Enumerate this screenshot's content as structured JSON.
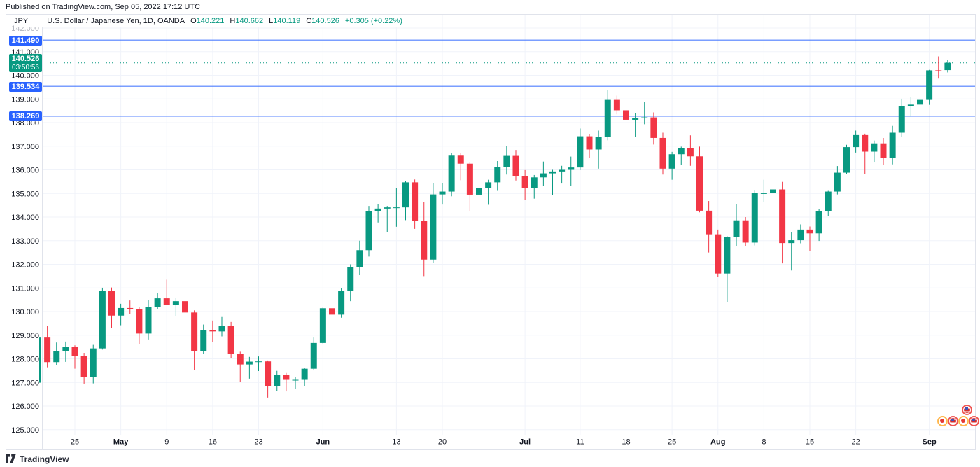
{
  "published_bar": {
    "text": "Published on TradingView.com, Sep 05, 2022 17:12 UTC"
  },
  "legend": {
    "currency": "JPY",
    "title": "U.S. Dollar / Japanese Yen, 1D, OANDA",
    "ohlc": {
      "o_label": "O",
      "o": "140.221",
      "h_label": "H",
      "h": "140.662",
      "l_label": "L",
      "l": "140.119",
      "c_label": "C",
      "c": "140.526",
      "change": "+0.305 (+0.22%)"
    }
  },
  "price_scale": {
    "alerts": [
      "141.490",
      "139.534",
      "138.269"
    ],
    "current": {
      "price": "140.526",
      "countdown": "03:50:56"
    }
  },
  "footer": {
    "brand": "TradingView"
  },
  "colors": {
    "up": "#089981",
    "down": "#F23645",
    "alert_line": "#2962FF",
    "grid": "#F0F3FA",
    "border": "#E0E3EB",
    "text": "#131722"
  },
  "chart_data": {
    "type": "candlestick",
    "title": "U.S. Dollar / Japanese Yen",
    "timeframe": "1D",
    "exchange": "OANDA",
    "ylim": [
      124.8,
      142.6
    ],
    "grid": true,
    "y_axis_labels": [
      "142.000",
      "141.000",
      "140.000",
      "139.000",
      "138.000",
      "137.000",
      "136.000",
      "135.000",
      "134.000",
      "133.000",
      "132.000",
      "131.000",
      "130.000",
      "129.000",
      "128.000",
      "127.000",
      "126.000",
      "125.000"
    ],
    "x_ticks": [
      [
        4,
        "25",
        0
      ],
      [
        9,
        "May",
        1
      ],
      [
        14,
        "9",
        0
      ],
      [
        19,
        "16",
        0
      ],
      [
        24,
        "23",
        0
      ],
      [
        31,
        "Jun",
        1
      ],
      [
        39,
        "13",
        0
      ],
      [
        44,
        "20",
        0
      ],
      [
        53,
        "Jul",
        1
      ],
      [
        59,
        "11",
        0
      ],
      [
        64,
        "18",
        0
      ],
      [
        69,
        "25",
        0
      ],
      [
        74,
        "Aug",
        1
      ],
      [
        79,
        "8",
        0
      ],
      [
        84,
        "15",
        0
      ],
      [
        89,
        "22",
        0
      ],
      [
        97,
        "Sep",
        1
      ]
    ],
    "price_lines": {
      "alerts": [
        141.49,
        139.534,
        138.269
      ],
      "current": 140.526
    },
    "events_top": [
      "us"
    ],
    "events_bottom": [
      "jp",
      "us",
      "jp",
      "us"
    ],
    "candles": [
      [
        "Apr 19",
        126.99,
        128.97,
        126.93,
        128.9
      ],
      [
        "Apr 20",
        128.9,
        129.4,
        127.64,
        127.86
      ],
      [
        "Apr 21",
        127.86,
        128.69,
        127.74,
        128.33
      ],
      [
        "Apr 22",
        128.33,
        128.73,
        127.87,
        128.5
      ],
      [
        "Apr 25",
        128.5,
        128.57,
        127.58,
        128.11
      ],
      [
        "Apr 26",
        128.11,
        128.25,
        126.95,
        127.24
      ],
      [
        "Apr 27",
        127.24,
        128.59,
        126.96,
        128.44
      ],
      [
        "Apr 28",
        128.44,
        131.01,
        128.39,
        130.86
      ],
      [
        "Apr 29",
        130.86,
        131.02,
        129.31,
        129.83
      ],
      [
        "May 2",
        129.83,
        130.33,
        129.42,
        130.15
      ],
      [
        "May 3",
        130.15,
        130.47,
        129.9,
        130.11
      ],
      [
        "May 4",
        130.11,
        130.19,
        128.63,
        129.07
      ],
      [
        "May 5",
        129.07,
        130.5,
        128.82,
        130.19
      ],
      [
        "May 6",
        130.19,
        130.77,
        130.11,
        130.56
      ],
      [
        "May 9",
        130.56,
        131.35,
        130.27,
        130.29
      ],
      [
        "May 10",
        130.29,
        130.58,
        129.81,
        130.44
      ],
      [
        "May 11",
        130.44,
        130.6,
        129.45,
        129.96
      ],
      [
        "May 12",
        129.96,
        130.05,
        127.52,
        128.34
      ],
      [
        "May 13",
        128.34,
        129.45,
        128.22,
        129.21
      ],
      [
        "May 16",
        129.21,
        129.62,
        128.71,
        129.16
      ],
      [
        "May 17",
        129.16,
        129.77,
        128.95,
        129.38
      ],
      [
        "May 18",
        129.38,
        129.56,
        128.04,
        128.22
      ],
      [
        "May 19",
        128.22,
        128.3,
        127.03,
        127.76
      ],
      [
        "May 20",
        127.76,
        128.08,
        127.16,
        127.88
      ],
      [
        "May 23",
        127.88,
        128.1,
        127.48,
        127.89
      ],
      [
        "May 24",
        127.89,
        127.93,
        126.36,
        126.83
      ],
      [
        "May 25",
        126.83,
        127.49,
        126.63,
        127.31
      ],
      [
        "May 26",
        127.31,
        127.4,
        126.62,
        127.11
      ],
      [
        "May 27",
        127.11,
        127.23,
        126.73,
        127.11
      ],
      [
        "May 30",
        127.11,
        127.6,
        126.84,
        127.58
      ],
      [
        "May 31",
        127.58,
        128.9,
        127.51,
        128.67
      ],
      [
        "Jun 1",
        128.67,
        130.2,
        128.64,
        130.14
      ],
      [
        "Jun 2",
        130.14,
        130.23,
        129.45,
        129.87
      ],
      [
        "Jun 3",
        129.87,
        130.98,
        129.74,
        130.86
      ],
      [
        "Jun 6",
        130.86,
        132.0,
        130.44,
        131.88
      ],
      [
        "Jun 7",
        131.88,
        133.0,
        131.54,
        132.6
      ],
      [
        "Jun 8",
        132.6,
        134.47,
        132.33,
        134.25
      ],
      [
        "Jun 9",
        134.25,
        134.56,
        133.77,
        134.36
      ],
      [
        "Jun 10",
        134.36,
        134.47,
        133.37,
        134.41
      ],
      [
        "Jun 13",
        134.41,
        135.22,
        133.59,
        134.41
      ],
      [
        "Jun 14",
        134.41,
        135.53,
        133.87,
        135.47
      ],
      [
        "Jun 15",
        135.47,
        135.59,
        133.5,
        133.85
      ],
      [
        "Jun 16",
        133.85,
        134.63,
        131.5,
        132.2
      ],
      [
        "Jun 17",
        132.2,
        135.43,
        132.05,
        134.96
      ],
      [
        "Jun 20",
        134.96,
        135.44,
        134.53,
        135.08
      ],
      [
        "Jun 21",
        135.08,
        136.71,
        134.88,
        136.6
      ],
      [
        "Jun 22",
        136.6,
        136.71,
        135.56,
        136.26
      ],
      [
        "Jun 23",
        136.26,
        136.32,
        134.26,
        134.95
      ],
      [
        "Jun 24",
        134.95,
        135.41,
        134.31,
        135.23
      ],
      [
        "Jun 27",
        135.23,
        135.58,
        134.52,
        135.47
      ],
      [
        "Jun 28",
        135.47,
        136.37,
        135.11,
        136.11
      ],
      [
        "Jun 29",
        136.11,
        137.0,
        135.8,
        136.59
      ],
      [
        "Jun 30",
        136.59,
        136.84,
        135.55,
        135.72
      ],
      [
        "Jul 1",
        135.72,
        135.99,
        134.74,
        135.22
      ],
      [
        "Jul 4",
        135.22,
        135.78,
        134.78,
        135.68
      ],
      [
        "Jul 5",
        135.68,
        136.35,
        135.33,
        135.85
      ],
      [
        "Jul 6",
        135.85,
        136.0,
        134.95,
        135.93
      ],
      [
        "Jul 7",
        135.93,
        136.17,
        135.42,
        136.0
      ],
      [
        "Jul 8",
        136.0,
        136.56,
        135.32,
        136.1
      ],
      [
        "Jul 11",
        136.1,
        137.75,
        135.99,
        137.42
      ],
      [
        "Jul 12",
        137.42,
        137.51,
        136.52,
        136.86
      ],
      [
        "Jul 13",
        136.86,
        137.66,
        136.05,
        137.38
      ],
      [
        "Jul 14",
        137.38,
        139.39,
        137.25,
        138.96
      ],
      [
        "Jul 15",
        138.96,
        139.14,
        138.35,
        138.52
      ],
      [
        "Jul 18",
        138.52,
        138.58,
        137.89,
        138.12
      ],
      [
        "Jul 19",
        138.12,
        138.4,
        137.38,
        138.2
      ],
      [
        "Jul 20",
        138.2,
        138.87,
        137.93,
        138.22
      ],
      [
        "Jul 21",
        138.22,
        138.43,
        137.07,
        137.35
      ],
      [
        "Jul 22",
        137.35,
        137.57,
        135.8,
        136.05
      ],
      [
        "Jul 25",
        136.05,
        136.76,
        135.58,
        136.66
      ],
      [
        "Jul 26",
        136.66,
        136.98,
        136.2,
        136.91
      ],
      [
        "Jul 27",
        136.91,
        137.46,
        136.17,
        136.57
      ],
      [
        "Jul 28",
        136.57,
        136.98,
        134.2,
        134.27
      ],
      [
        "Jul 29",
        134.27,
        134.68,
        132.5,
        133.27
      ],
      [
        "Aug 1",
        133.27,
        133.47,
        131.47,
        131.61
      ],
      [
        "Aug 2",
        131.61,
        133.19,
        130.41,
        133.17
      ],
      [
        "Aug 3",
        133.17,
        134.55,
        132.77,
        133.86
      ],
      [
        "Aug 4",
        133.86,
        134.0,
        132.76,
        132.92
      ],
      [
        "Aug 5",
        132.92,
        135.12,
        132.8,
        135.01
      ],
      [
        "Aug 8",
        135.01,
        135.58,
        134.64,
        135.01
      ],
      [
        "Aug 9",
        135.01,
        135.29,
        134.54,
        135.17
      ],
      [
        "Aug 10",
        135.17,
        135.49,
        132.04,
        132.9
      ],
      [
        "Aug 11",
        132.9,
        133.37,
        131.74,
        133.02
      ],
      [
        "Aug 12",
        133.02,
        133.69,
        132.89,
        133.47
      ],
      [
        "Aug 15",
        133.47,
        133.6,
        132.56,
        133.31
      ],
      [
        "Aug 16",
        133.31,
        134.33,
        132.99,
        134.25
      ],
      [
        "Aug 17",
        134.25,
        135.11,
        134.04,
        135.08
      ],
      [
        "Aug 18",
        135.08,
        136.16,
        134.96,
        135.88
      ],
      [
        "Aug 19",
        135.88,
        137.06,
        135.82,
        136.96
      ],
      [
        "Aug 22",
        136.96,
        137.66,
        136.73,
        137.47
      ],
      [
        "Aug 23",
        137.47,
        137.53,
        135.82,
        136.77
      ],
      [
        "Aug 24",
        136.77,
        137.24,
        136.31,
        137.12
      ],
      [
        "Aug 25",
        137.12,
        137.35,
        136.21,
        136.49
      ],
      [
        "Aug 26",
        136.49,
        137.86,
        136.23,
        137.57
      ],
      [
        "Aug 29",
        137.57,
        139.01,
        137.39,
        138.7
      ],
      [
        "Aug 30",
        138.7,
        139.08,
        138.25,
        138.76
      ],
      [
        "Aug 31",
        138.76,
        139.06,
        138.17,
        138.96
      ],
      [
        "Sep 1",
        138.96,
        140.23,
        138.75,
        140.21
      ],
      [
        "Sep 2",
        140.21,
        140.8,
        139.86,
        140.2
      ],
      [
        "Sep 5",
        140.22,
        140.66,
        140.12,
        140.53
      ]
    ]
  }
}
